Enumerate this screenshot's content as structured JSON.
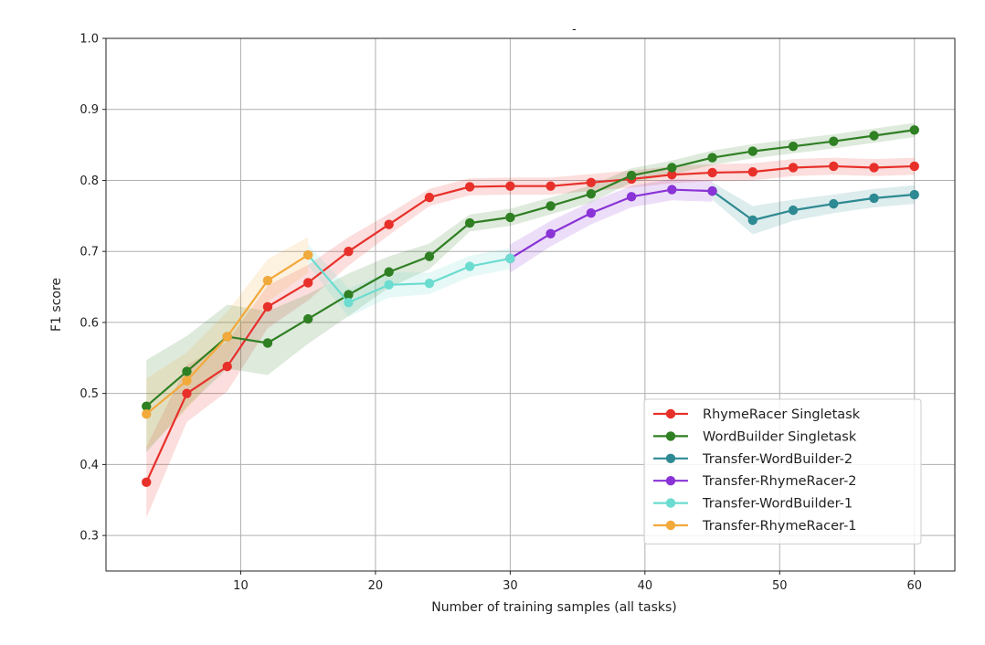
{
  "chart_data": {
    "type": "line",
    "title": "-",
    "xlabel": "Number of training samples (all tasks)",
    "ylabel": "F1 score",
    "xlim": [
      0,
      63
    ],
    "ylim": [
      0.25,
      1.0
    ],
    "xticks": [
      10,
      20,
      30,
      40,
      50,
      60
    ],
    "yticks": [
      0.3,
      0.4,
      0.5,
      0.6,
      0.7,
      0.8,
      0.9,
      1.0
    ],
    "grid": true,
    "legend_position": "lower-right",
    "series": [
      {
        "name": "RhymeRacer Singletask",
        "color": "#e8302a",
        "x": [
          3,
          6,
          9,
          12,
          15,
          18,
          21,
          24,
          27,
          30,
          33,
          36,
          39,
          42,
          45,
          48,
          51,
          54,
          57,
          60
        ],
        "y": [
          0.375,
          0.5,
          0.538,
          0.622,
          0.656,
          0.7,
          0.738,
          0.776,
          0.791,
          0.792,
          0.792,
          0.797,
          0.802,
          0.808,
          0.811,
          0.812,
          0.818,
          0.82,
          0.818,
          0.82
        ],
        "band": [
          0.05,
          0.04,
          0.035,
          0.03,
          0.025,
          0.02,
          0.015,
          0.012,
          0.012,
          0.012,
          0.012,
          0.012,
          0.012,
          0.012,
          0.012,
          0.012,
          0.012,
          0.012,
          0.012,
          0.012
        ]
      },
      {
        "name": "WordBuilder Singletask",
        "color": "#2f7f23",
        "x": [
          3,
          6,
          9,
          12,
          15,
          18,
          21,
          24,
          27,
          30,
          33,
          36,
          39,
          42,
          45,
          48,
          51,
          54,
          57,
          60
        ],
        "y": [
          0.482,
          0.531,
          0.58,
          0.571,
          0.605,
          0.639,
          0.671,
          0.693,
          0.74,
          0.748,
          0.764,
          0.781,
          0.807,
          0.818,
          0.832,
          0.841,
          0.848,
          0.855,
          0.863,
          0.871
        ],
        "band": [
          0.065,
          0.05,
          0.045,
          0.045,
          0.035,
          0.03,
          0.022,
          0.018,
          0.012,
          0.012,
          0.012,
          0.012,
          0.01,
          0.01,
          0.01,
          0.01,
          0.01,
          0.01,
          0.01,
          0.01
        ]
      },
      {
        "name": "Transfer-WordBuilder-2",
        "color": "#2e8a92",
        "x": [
          45,
          48,
          51,
          54,
          57,
          60
        ],
        "y": [
          0.785,
          0.744,
          0.758,
          0.767,
          0.775,
          0.78
        ],
        "band": [
          0.012,
          0.02,
          0.015,
          0.013,
          0.013,
          0.013
        ]
      },
      {
        "name": "Transfer-RhymeRacer-2",
        "color": "#8a33d6",
        "x": [
          30,
          33,
          36,
          39,
          42,
          45
        ],
        "y": [
          0.69,
          0.725,
          0.754,
          0.777,
          0.787,
          0.785
        ],
        "band": [
          0.02,
          0.018,
          0.016,
          0.015,
          0.015,
          0.015
        ]
      },
      {
        "name": "Transfer-WordBuilder-1",
        "color": "#6cdcd0",
        "x": [
          15,
          18,
          21,
          24,
          27,
          30
        ],
        "y": [
          0.695,
          0.628,
          0.653,
          0.655,
          0.679,
          0.69
        ],
        "band": [
          0.015,
          0.02,
          0.018,
          0.015,
          0.015,
          0.015
        ]
      },
      {
        "name": "Transfer-RhymeRacer-1",
        "color": "#f2a93b",
        "x": [
          3,
          6,
          9,
          12,
          15
        ],
        "y": [
          0.471,
          0.518,
          0.58,
          0.659,
          0.695
        ],
        "band": [
          0.05,
          0.04,
          0.035,
          0.03,
          0.025
        ]
      }
    ]
  }
}
